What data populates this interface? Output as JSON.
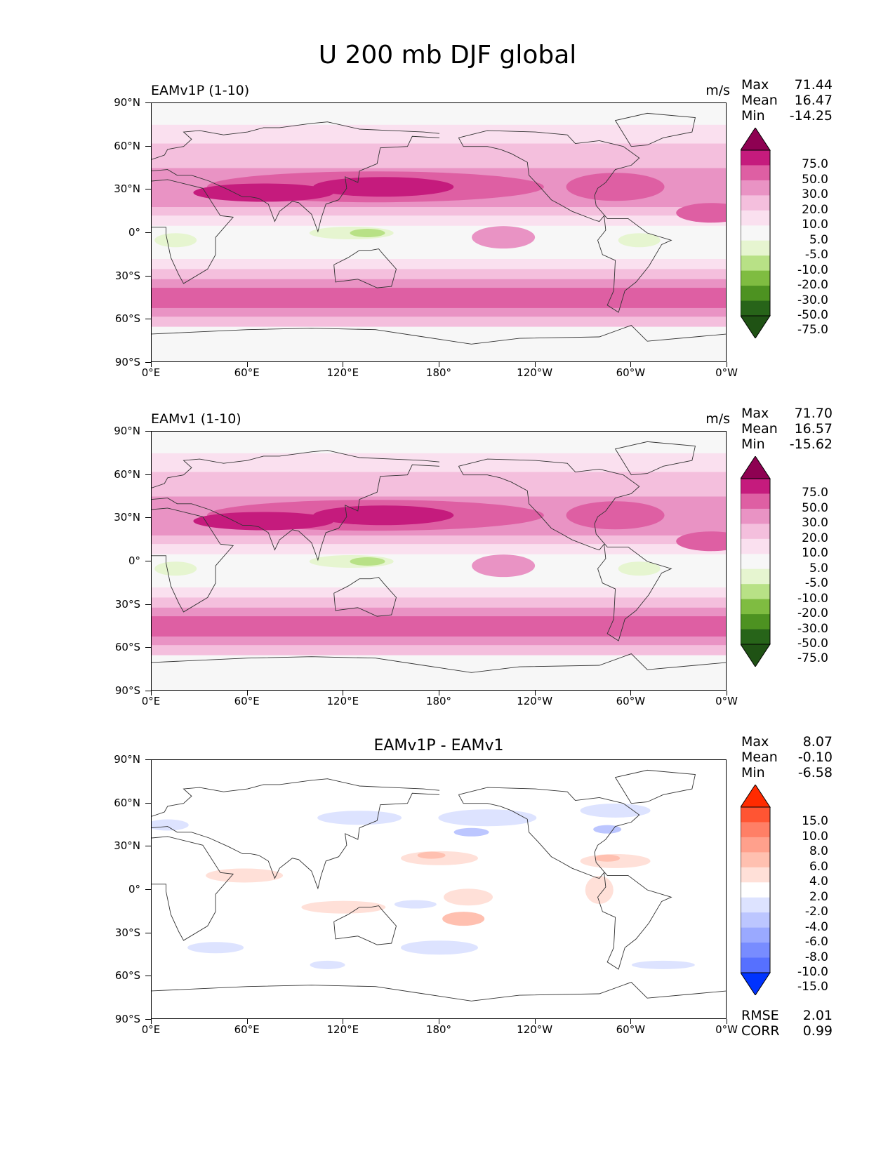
{
  "figure": {
    "title": "U 200 mb DJF global"
  },
  "axes": {
    "lat_labels": [
      "90°N",
      "60°N",
      "30°N",
      "0°",
      "30°S",
      "60°S",
      "90°S"
    ],
    "lon_labels": [
      "0°E",
      "60°E",
      "120°E",
      "180°",
      "120°W",
      "60°W",
      "0°W"
    ]
  },
  "panels": [
    {
      "title_left": "EAMv1P (1-10)",
      "title_right": "m/s",
      "title_center": "",
      "stats": {
        "max_label": "Max",
        "max": "71.44",
        "mean_label": "Mean",
        "mean": "16.47",
        "min_label": "Min",
        "min": "-14.25"
      },
      "colorbar": {
        "labels": [
          "75.0",
          "50.0",
          "30.0",
          "20.0",
          "10.0",
          "5.0",
          "-5.0",
          "-10.0",
          "-20.0",
          "-30.0",
          "-50.0",
          "-75.0"
        ],
        "colors": [
          "#8e0152",
          "#c51b7d",
          "#de5fa3",
          "#e993c4",
          "#f4bfdd",
          "#fae0ef",
          "#f7f7f7",
          "#e6f5d0",
          "#b8e186",
          "#7fbc41",
          "#4d9221",
          "#276419",
          "#1f5214"
        ]
      }
    },
    {
      "title_left": "EAMv1 (1-10)",
      "title_right": "m/s",
      "title_center": "",
      "stats": {
        "max_label": "Max",
        "max": "71.70",
        "mean_label": "Mean",
        "mean": "16.57",
        "min_label": "Min",
        "min": "-15.62"
      },
      "colorbar": {
        "labels": [
          "75.0",
          "50.0",
          "30.0",
          "20.0",
          "10.0",
          "5.0",
          "-5.0",
          "-10.0",
          "-20.0",
          "-30.0",
          "-50.0",
          "-75.0"
        ],
        "colors": [
          "#8e0152",
          "#c51b7d",
          "#de5fa3",
          "#e993c4",
          "#f4bfdd",
          "#fae0ef",
          "#f7f7f7",
          "#e6f5d0",
          "#b8e186",
          "#7fbc41",
          "#4d9221",
          "#276419",
          "#1f5214"
        ]
      }
    },
    {
      "title_left": "",
      "title_right": "",
      "title_center": "EAMv1P - EAMv1",
      "stats": {
        "max_label": "Max",
        "max": "8.07",
        "mean_label": "Mean",
        "mean": "-0.10",
        "min_label": "Min",
        "min": "-6.58"
      },
      "metrics": {
        "rmse_label": "RMSE",
        "rmse": "2.01",
        "corr_label": "CORR",
        "corr": "0.99"
      },
      "colorbar": {
        "labels": [
          "15.0",
          "10.0",
          "8.0",
          "6.0",
          "4.0",
          "2.0",
          "-2.0",
          "-4.0",
          "-6.0",
          "-8.0",
          "-10.0",
          "-15.0"
        ],
        "colors": [
          "#ff2b00",
          "#ff5533",
          "#ff7f66",
          "#ffa08c",
          "#ffc0b0",
          "#ffe0d8",
          "#ffffff",
          "#dde3ff",
          "#bcc6ff",
          "#9aa9ff",
          "#788cff",
          "#5670ff",
          "#0033ff"
        ]
      }
    }
  ]
}
